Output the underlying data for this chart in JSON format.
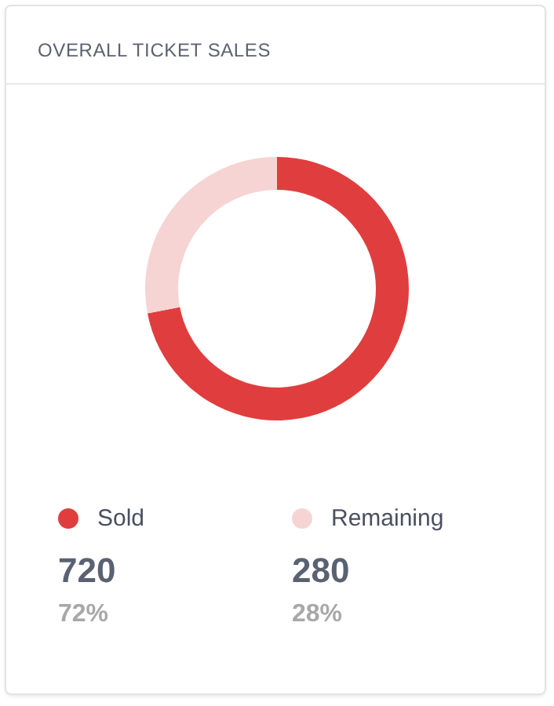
{
  "chart_data": {
    "type": "donut",
    "title": "OVERALL TICKET SALES",
    "categories": [
      "Sold",
      "Remaining"
    ],
    "values": [
      720,
      280
    ],
    "colors": [
      "#e03e3e",
      "#f6d4d4"
    ],
    "value_labels": [
      "720",
      "280"
    ],
    "annotations": [
      "72%",
      "28%"
    ],
    "legend": "bottom"
  }
}
